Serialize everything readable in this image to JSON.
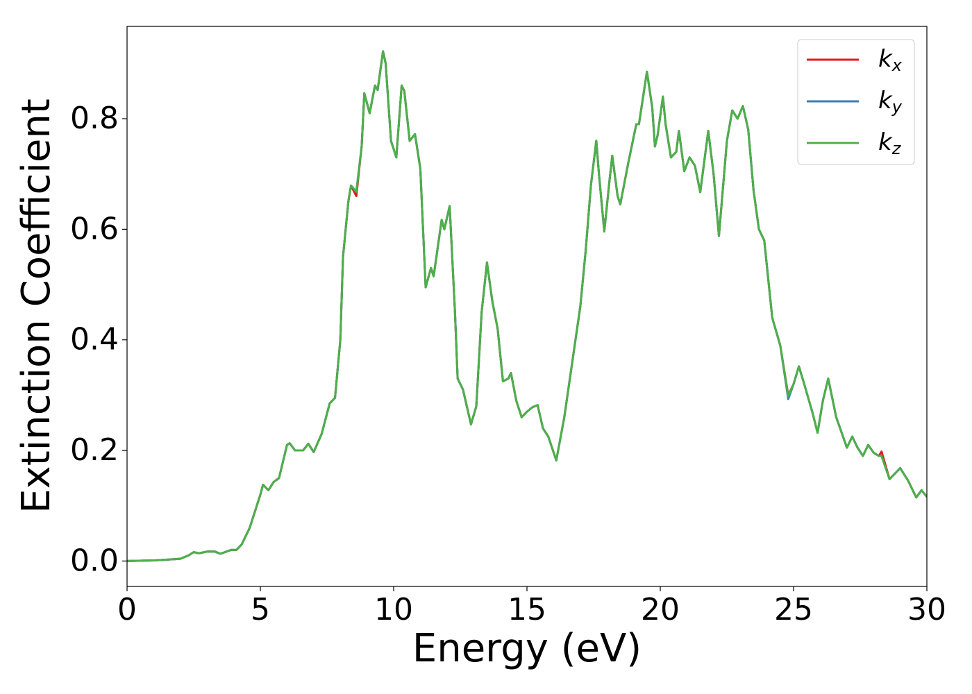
{
  "chart_data": {
    "type": "line",
    "xlabel": "Energy (eV)",
    "ylabel": "Extinction Coefficient",
    "x": [
      0,
      1,
      2,
      2.3,
      2.5,
      2.7,
      3,
      3.3,
      3.5,
      3.9,
      4.1,
      4.3,
      4.6,
      5.0,
      5.1,
      5.3,
      5.5,
      5.7,
      6.0,
      6.1,
      6.3,
      6.6,
      6.8,
      7.0,
      7.3,
      7.6,
      7.8,
      8.0,
      8.1,
      8.3,
      8.4,
      8.6,
      8.8,
      8.9,
      9.1,
      9.3,
      9.4,
      9.6,
      9.7,
      9.9,
      10.1,
      10.3,
      10.4,
      10.6,
      10.8,
      11.0,
      11.2,
      11.4,
      11.5,
      11.8,
      11.9,
      12.1,
      12.3,
      12.4,
      12.6,
      12.9,
      13.1,
      13.3,
      13.5,
      13.7,
      13.9,
      14.1,
      14.3,
      14.4,
      14.6,
      14.8,
      15.0,
      15.2,
      15.4,
      15.6,
      15.8,
      16.1,
      16.4,
      16.7,
      17.0,
      17.2,
      17.4,
      17.6,
      17.7,
      17.9,
      18.1,
      18.2,
      18.4,
      18.5,
      18.8,
      19.1,
      19.2,
      19.5,
      19.7,
      19.8,
      19.9,
      20.0,
      20.1,
      20.2,
      20.4,
      20.6,
      20.7,
      20.9,
      21.1,
      21.3,
      21.5,
      21.8,
      22.0,
      22.2,
      22.5,
      22.7,
      22.9,
      23.1,
      23.3,
      23.5,
      23.7,
      23.9,
      24.2,
      24.5,
      24.8,
      25.0,
      25.2,
      25.4,
      25.7,
      25.9,
      26.1,
      26.3,
      26.6,
      27.0,
      27.2,
      27.4,
      27.6,
      27.8,
      28.0,
      28.2,
      28.3,
      28.6,
      29.0,
      29.3,
      29.6,
      29.8,
      30.0
    ],
    "series": [
      {
        "name": "kx",
        "color": "#e41a1c",
        "values": [
          0,
          0.001,
          0.004,
          0.01,
          0.016,
          0.014,
          0.017,
          0.017,
          0.013,
          0.02,
          0.02,
          0.03,
          0.06,
          0.12,
          0.138,
          0.128,
          0.143,
          0.15,
          0.21,
          0.213,
          0.2,
          0.2,
          0.212,
          0.197,
          0.23,
          0.285,
          0.295,
          0.4,
          0.55,
          0.65,
          0.679,
          0.66,
          0.75,
          0.846,
          0.81,
          0.86,
          0.852,
          0.922,
          0.9,
          0.76,
          0.73,
          0.86,
          0.85,
          0.76,
          0.772,
          0.71,
          0.495,
          0.53,
          0.515,
          0.617,
          0.6,
          0.642,
          0.45,
          0.33,
          0.31,
          0.247,
          0.28,
          0.45,
          0.54,
          0.47,
          0.42,
          0.325,
          0.33,
          0.34,
          0.29,
          0.26,
          0.27,
          0.278,
          0.282,
          0.24,
          0.225,
          0.182,
          0.26,
          0.36,
          0.46,
          0.56,
          0.68,
          0.76,
          0.7,
          0.596,
          0.69,
          0.733,
          0.66,
          0.645,
          0.72,
          0.79,
          0.79,
          0.885,
          0.82,
          0.75,
          0.77,
          0.805,
          0.84,
          0.79,
          0.73,
          0.74,
          0.778,
          0.705,
          0.73,
          0.715,
          0.667,
          0.778,
          0.7,
          0.588,
          0.76,
          0.815,
          0.8,
          0.823,
          0.78,
          0.67,
          0.6,
          0.58,
          0.44,
          0.39,
          0.3,
          0.32,
          0.352,
          0.32,
          0.27,
          0.232,
          0.29,
          0.33,
          0.26,
          0.205,
          0.225,
          0.205,
          0.19,
          0.21,
          0.196,
          0.19,
          0.198,
          0.148,
          0.168,
          0.145,
          0.115,
          0.128,
          0.116
        ]
      },
      {
        "name": "ky",
        "color": "#377eb8",
        "values": [
          0,
          0.001,
          0.004,
          0.01,
          0.016,
          0.014,
          0.017,
          0.017,
          0.013,
          0.02,
          0.02,
          0.03,
          0.06,
          0.12,
          0.138,
          0.128,
          0.143,
          0.15,
          0.21,
          0.213,
          0.2,
          0.2,
          0.212,
          0.197,
          0.23,
          0.285,
          0.295,
          0.4,
          0.55,
          0.65,
          0.679,
          0.668,
          0.75,
          0.846,
          0.81,
          0.86,
          0.852,
          0.922,
          0.9,
          0.76,
          0.73,
          0.86,
          0.85,
          0.76,
          0.772,
          0.71,
          0.495,
          0.53,
          0.515,
          0.617,
          0.6,
          0.642,
          0.45,
          0.33,
          0.31,
          0.247,
          0.28,
          0.45,
          0.54,
          0.47,
          0.42,
          0.325,
          0.33,
          0.34,
          0.29,
          0.26,
          0.27,
          0.278,
          0.282,
          0.24,
          0.225,
          0.182,
          0.26,
          0.36,
          0.46,
          0.56,
          0.68,
          0.76,
          0.7,
          0.596,
          0.69,
          0.733,
          0.66,
          0.645,
          0.72,
          0.79,
          0.79,
          0.885,
          0.82,
          0.75,
          0.77,
          0.805,
          0.84,
          0.79,
          0.73,
          0.74,
          0.778,
          0.705,
          0.73,
          0.715,
          0.667,
          0.778,
          0.7,
          0.588,
          0.76,
          0.815,
          0.8,
          0.823,
          0.78,
          0.67,
          0.6,
          0.58,
          0.44,
          0.39,
          0.293,
          0.32,
          0.352,
          0.32,
          0.27,
          0.232,
          0.29,
          0.33,
          0.26,
          0.205,
          0.225,
          0.205,
          0.19,
          0.21,
          0.196,
          0.19,
          0.19,
          0.148,
          0.168,
          0.145,
          0.115,
          0.128,
          0.116
        ]
      },
      {
        "name": "kz",
        "color": "#4daf4a",
        "values": [
          0,
          0.001,
          0.004,
          0.01,
          0.016,
          0.014,
          0.017,
          0.017,
          0.013,
          0.02,
          0.02,
          0.03,
          0.06,
          0.12,
          0.138,
          0.128,
          0.143,
          0.15,
          0.21,
          0.213,
          0.2,
          0.2,
          0.212,
          0.197,
          0.23,
          0.285,
          0.295,
          0.4,
          0.55,
          0.65,
          0.679,
          0.668,
          0.75,
          0.846,
          0.81,
          0.86,
          0.852,
          0.922,
          0.9,
          0.76,
          0.73,
          0.86,
          0.85,
          0.76,
          0.772,
          0.71,
          0.495,
          0.53,
          0.515,
          0.617,
          0.6,
          0.642,
          0.45,
          0.33,
          0.31,
          0.247,
          0.28,
          0.45,
          0.54,
          0.47,
          0.42,
          0.325,
          0.33,
          0.34,
          0.29,
          0.26,
          0.27,
          0.278,
          0.282,
          0.24,
          0.225,
          0.182,
          0.26,
          0.36,
          0.46,
          0.56,
          0.68,
          0.76,
          0.7,
          0.596,
          0.69,
          0.733,
          0.66,
          0.645,
          0.72,
          0.79,
          0.79,
          0.885,
          0.82,
          0.75,
          0.77,
          0.805,
          0.84,
          0.79,
          0.73,
          0.74,
          0.778,
          0.705,
          0.73,
          0.715,
          0.667,
          0.778,
          0.7,
          0.588,
          0.76,
          0.815,
          0.8,
          0.823,
          0.78,
          0.67,
          0.6,
          0.58,
          0.44,
          0.39,
          0.298,
          0.32,
          0.352,
          0.32,
          0.27,
          0.232,
          0.29,
          0.33,
          0.26,
          0.205,
          0.225,
          0.205,
          0.19,
          0.21,
          0.196,
          0.19,
          0.19,
          0.148,
          0.168,
          0.145,
          0.115,
          0.128,
          0.116
        ]
      }
    ],
    "xlim": [
      0,
      30
    ],
    "xticks": [
      0,
      5,
      10,
      15,
      20,
      25,
      30
    ],
    "ylim": [
      -0.046,
      0.967
    ],
    "yticks": [
      {
        "value": 0,
        "label": "0.0"
      },
      {
        "value": 0.2,
        "label": "0.2"
      },
      {
        "value": 0.4,
        "label": "0.4"
      },
      {
        "value": 0.6,
        "label": "0.6"
      },
      {
        "value": 0.8,
        "label": "0.8"
      }
    ],
    "grid": false,
    "legend": "upper right"
  }
}
